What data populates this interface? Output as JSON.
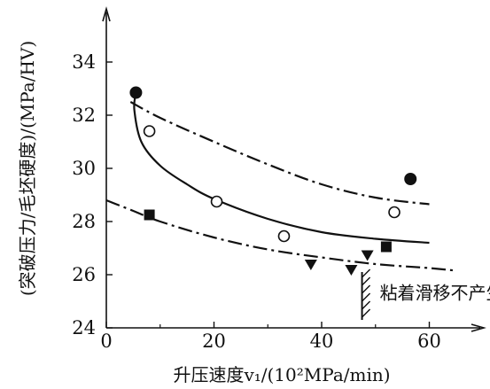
{
  "chart_data": {
    "type": "scatter",
    "xlabel": "升压速度v₁/(10²MPa/min)",
    "ylabel": "(突破压力/毛坯硬度)/(MPa/HV)",
    "xlim": [
      0,
      70
    ],
    "ylim": [
      24,
      36
    ],
    "x_ticks": [
      0,
      20,
      40,
      60
    ],
    "y_ticks": [
      24,
      26,
      28,
      30,
      32,
      34
    ],
    "grid": false,
    "legend": "none",
    "series": [
      {
        "marker": "filled-circle",
        "points": [
          [
            5.5,
            32.85
          ],
          [
            56.5,
            29.6
          ]
        ]
      },
      {
        "marker": "open-circle",
        "points": [
          [
            8,
            31.4
          ],
          [
            20.5,
            28.75
          ],
          [
            33,
            27.45
          ],
          [
            53.5,
            28.35
          ]
        ]
      },
      {
        "marker": "filled-square",
        "points": [
          [
            8,
            28.25
          ],
          [
            52,
            27.05
          ]
        ]
      },
      {
        "marker": "filled-triangle-down",
        "points": [
          [
            38,
            26.4
          ],
          [
            45.5,
            26.2
          ],
          [
            48.5,
            26.75
          ]
        ]
      }
    ],
    "curves": [
      {
        "style": "dash-dot",
        "points": [
          [
            4.5,
            32.5
          ],
          [
            10,
            31.9
          ],
          [
            20,
            31.0
          ],
          [
            30,
            30.15
          ],
          [
            40,
            29.4
          ],
          [
            50,
            28.9
          ],
          [
            60,
            28.65
          ]
        ]
      },
      {
        "style": "solid",
        "points": [
          [
            5.5,
            32.85
          ],
          [
            5.2,
            32.2
          ],
          [
            6.5,
            31.0
          ],
          [
            10,
            30.1
          ],
          [
            15,
            29.4
          ],
          [
            20,
            28.85
          ],
          [
            30,
            28.1
          ],
          [
            40,
            27.6
          ],
          [
            50,
            27.35
          ],
          [
            60,
            27.2
          ]
        ]
      },
      {
        "style": "dash-dot",
        "points": [
          [
            0,
            28.8
          ],
          [
            5,
            28.4
          ],
          [
            10,
            28.0
          ],
          [
            20,
            27.4
          ],
          [
            30,
            26.95
          ],
          [
            40,
            26.65
          ],
          [
            50,
            26.4
          ],
          [
            60,
            26.25
          ],
          [
            65,
            26.15
          ]
        ]
      }
    ],
    "annotations": [
      {
        "text": "粘着滑移不产生区",
        "hatch_x": 47.5,
        "y_from": 24.3,
        "y_to": 26.1
      }
    ]
  }
}
